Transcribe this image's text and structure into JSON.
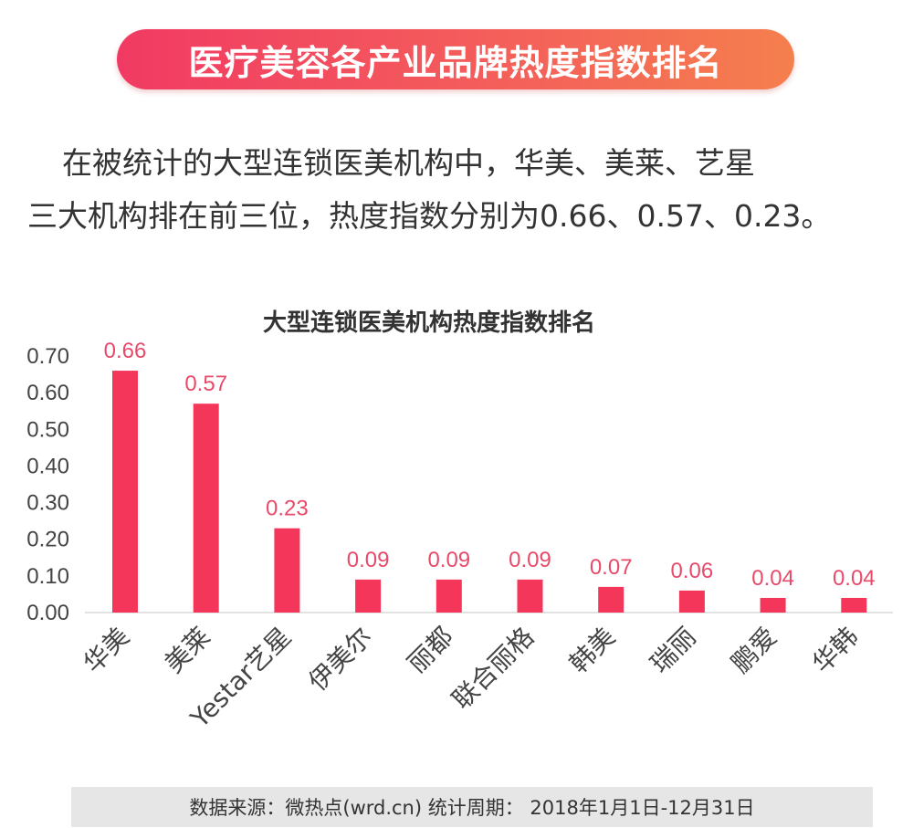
{
  "header": {
    "title": "医疗美容各产业品牌热度指数排名"
  },
  "intro": {
    "line1": "在被统计的大型连锁医美机构中，华美、美莱、艺星",
    "line2": "三大机构排在前三位，热度指数分别为0.66、0.57、0.23。"
  },
  "chart_data": {
    "type": "bar",
    "title": "大型连锁医美机构热度指数排名",
    "categories": [
      "华美",
      "美莱",
      "Yestar艺星",
      "伊美尔",
      "丽都",
      "联合丽格",
      "韩美",
      "瑞丽",
      "鹏爱",
      "华韩"
    ],
    "values": [
      0.66,
      0.57,
      0.23,
      0.09,
      0.09,
      0.09,
      0.07,
      0.06,
      0.04,
      0.04
    ],
    "value_labels": [
      "0.66",
      "0.57",
      "0.23",
      "0.09",
      "0.09",
      "0.09",
      "0.07",
      "0.06",
      "0.04",
      "0.04"
    ],
    "yticks": [
      "0.00",
      "0.10",
      "0.20",
      "0.30",
      "0.40",
      "0.50",
      "0.60",
      "0.70"
    ],
    "ylim": [
      0,
      0.7
    ],
    "xlabel": "",
    "ylabel": "",
    "grid": false,
    "colors": {
      "bar": "#f4365a",
      "label": "#e84a6a",
      "axis_text": "#444444"
    }
  },
  "footer": {
    "source": "数据来源：微热点(wrd.cn)  统计周期： 2018年1月1日-12月31日"
  }
}
